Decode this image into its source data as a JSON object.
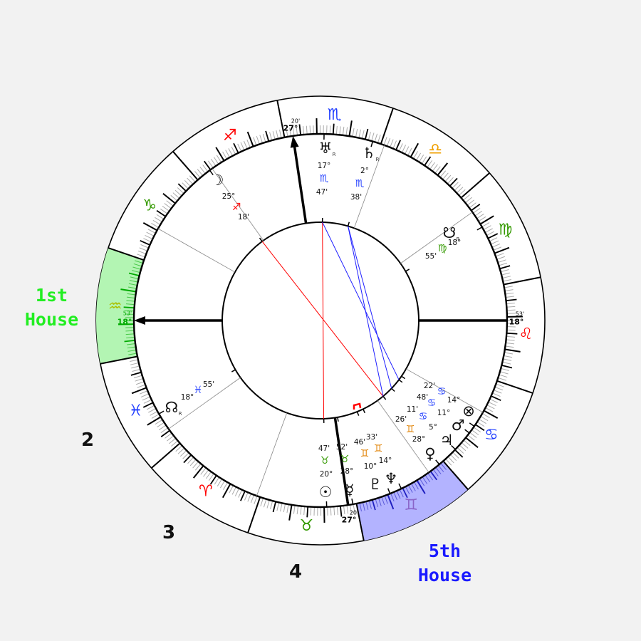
{
  "chart": {
    "ascendant": {
      "sign": "Aquarius",
      "degree": "18°",
      "minutes": "53'"
    },
    "descendant": {
      "sign": "Leo",
      "degree": "18°",
      "minutes": "53'"
    },
    "midheaven": {
      "sign": "Scorpio",
      "degree": "27°",
      "minutes": "20'"
    },
    "imum_coeli": {
      "sign": "Taurus",
      "degree": "27°",
      "minutes": "20'"
    },
    "house_cusp_angles_note": "",
    "signs": [
      {
        "name": "Aries",
        "icon": "aries-icon",
        "glyph": "♈︎",
        "color": "#ff0000"
      },
      {
        "name": "Taurus",
        "icon": "taurus-icon",
        "glyph": "♉︎",
        "color": "#339900"
      },
      {
        "name": "Gemini",
        "icon": "gemini-icon",
        "glyph": "♊︎",
        "color": "#8a64c8"
      },
      {
        "name": "Cancer",
        "icon": "cancer-icon",
        "glyph": "♋︎",
        "color": "#1f3cff"
      },
      {
        "name": "Leo",
        "icon": "leo-icon",
        "glyph": "♌︎",
        "color": "#ff0000"
      },
      {
        "name": "Virgo",
        "icon": "virgo-icon",
        "glyph": "♍︎",
        "color": "#339900"
      },
      {
        "name": "Libra",
        "icon": "libra-icon",
        "glyph": "♎︎",
        "color": "#f0a000"
      },
      {
        "name": "Scorpio",
        "icon": "scorpio-icon",
        "glyph": "♏︎",
        "color": "#1f3cff"
      },
      {
        "name": "Sagittarius",
        "icon": "sagittarius-icon",
        "glyph": "♐︎",
        "color": "#ff0000"
      },
      {
        "name": "Capricorn",
        "icon": "capricorn-icon",
        "glyph": "♑︎",
        "color": "#339900"
      },
      {
        "name": "Aquarius",
        "icon": "aquarius-icon",
        "glyph": "♒︎",
        "color": "#aac000"
      },
      {
        "name": "Pisces",
        "icon": "pisces-icon",
        "glyph": "♓︎",
        "color": "#1f3cff"
      }
    ],
    "planets": [
      {
        "name": "Uranus",
        "icon": "uranus-icon",
        "glyph": "♅",
        "sign": "Scorpio",
        "sign_glyph": "♏︎",
        "degree": "17°",
        "minutes": "47'",
        "retrograde": "R"
      },
      {
        "name": "Saturn",
        "icon": "saturn-icon",
        "glyph": "♄",
        "sign": "Scorpio",
        "sign_glyph": "♏︎",
        "degree": "2°",
        "minutes": "38'",
        "retrograde": "R"
      },
      {
        "name": "Moon",
        "icon": "moon-icon",
        "glyph": "☽",
        "sign": "Sagittarius",
        "sign_glyph": "♐︎",
        "degree": "25°",
        "minutes": "18'",
        "retrograde": ""
      },
      {
        "name": "South Node",
        "icon": "south-node-icon",
        "glyph": "☋",
        "sign": "Virgo",
        "sign_glyph": "♍︎",
        "degree": "18°",
        "minutes": "55'",
        "retrograde": "R"
      },
      {
        "name": "North Node",
        "icon": "north-node-icon",
        "glyph": "☊",
        "sign": "Pisces",
        "sign_glyph": "♓︎",
        "degree": "18°",
        "minutes": "55'",
        "retrograde": "R"
      },
      {
        "name": "Sun",
        "icon": "sun-icon",
        "glyph": "☉",
        "sign": "Taurus",
        "sign_glyph": "♉︎",
        "degree": "20°",
        "minutes": "47'",
        "retrograde": ""
      },
      {
        "name": "Mercury",
        "icon": "mercury-icon",
        "glyph": "☿",
        "sign": "Taurus",
        "sign_glyph": "♉︎",
        "degree": "28°",
        "minutes": "52'",
        "retrograde": ""
      },
      {
        "name": "Pluto",
        "icon": "pluto-icon",
        "glyph": "♇",
        "sign": "Gemini",
        "sign_glyph": "♊︎",
        "degree": "10°",
        "minutes": "46'",
        "retrograde": ""
      },
      {
        "name": "Neptune",
        "icon": "neptune-icon",
        "glyph": "♆",
        "sign": "Gemini",
        "sign_glyph": "♊︎",
        "degree": "14°",
        "minutes": "33'",
        "retrograde": ""
      },
      {
        "name": "Venus",
        "icon": "venus-icon",
        "glyph": "♀",
        "sign": "Gemini",
        "sign_glyph": "♊︎",
        "degree": "28°",
        "minutes": "26'",
        "retrograde": ""
      },
      {
        "name": "Jupiter",
        "icon": "jupiter-icon",
        "glyph": "♃",
        "sign": "Cancer",
        "sign_glyph": "♋︎",
        "degree": "5°",
        "minutes": "11'",
        "retrograde": ""
      },
      {
        "name": "Mars",
        "icon": "mars-icon",
        "glyph": "♂",
        "sign": "Cancer",
        "sign_glyph": "♋︎",
        "degree": "11°",
        "minutes": "48'",
        "retrograde": ""
      },
      {
        "name": "Part of Fortune",
        "icon": "part-of-fortune-icon",
        "glyph": "⊗",
        "sign": "Cancer",
        "sign_glyph": "♋︎",
        "degree": "14°",
        "minutes": "22'",
        "retrograde": ""
      }
    ],
    "aspects": [
      {
        "from": "Moon",
        "to": "Venus",
        "type": "opposition",
        "color": "#ff0000"
      },
      {
        "from": "Uranus",
        "to": "Sun",
        "type": "opposition",
        "color": "#ff0000"
      },
      {
        "from": "Uranus",
        "to": "Mars",
        "type": "trine",
        "color": "#2020ff"
      },
      {
        "from": "Saturn",
        "to": "Jupiter",
        "type": "trine",
        "color": "#2020ff"
      },
      {
        "from": "Saturn",
        "to": "Venus",
        "type": "trine",
        "color": "#2020ff"
      }
    ],
    "highlights": [
      {
        "sign": "Aquarius",
        "house": "1st House",
        "fill": "#b3f5b3",
        "tick": "#00aa00"
      },
      {
        "sign": "Gemini",
        "house": "5th House",
        "fill": "#b3b3ff",
        "tick": "#2020c0"
      }
    ]
  },
  "labels": {
    "house1": {
      "line1": "1st",
      "line2": "House",
      "color": "#22ee22"
    },
    "house2": "2",
    "house3": "3",
    "house4": "4",
    "house5": {
      "line1": "5th",
      "line2": "House",
      "color": "#1a1aff"
    }
  }
}
